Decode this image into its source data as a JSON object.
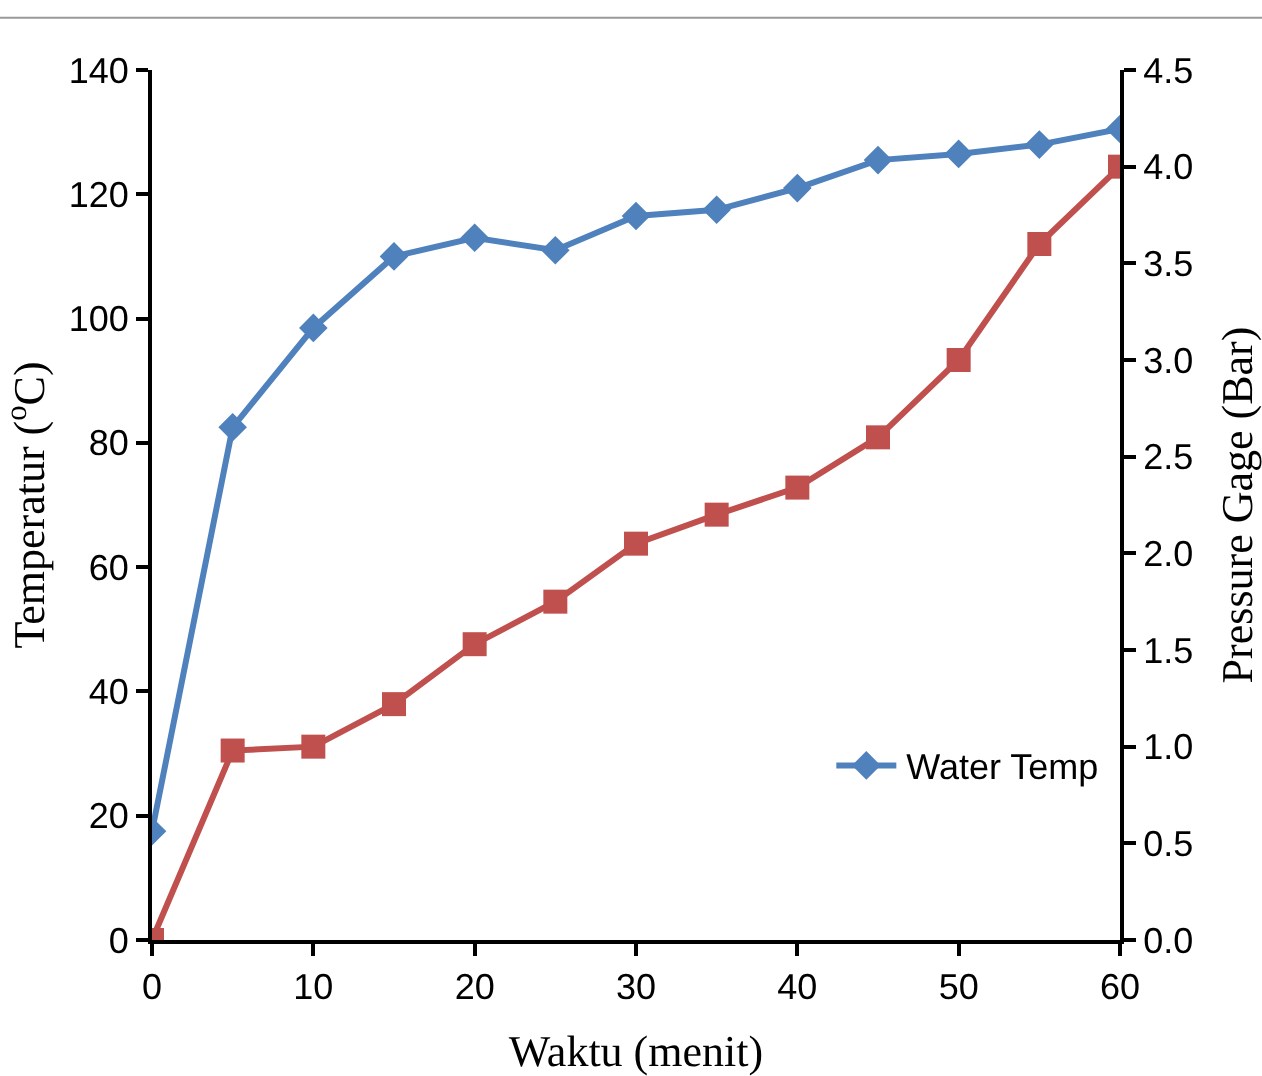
{
  "chart_data": {
    "type": "line",
    "xlabel": "Waktu (menit)",
    "ylabel": "Temperatur ($^{o}$C)",
    "y2label": "Pressure Gage (Bar)",
    "x": [
      0,
      5,
      10,
      15,
      20,
      25,
      30,
      35,
      40,
      45,
      50,
      55,
      60
    ],
    "series": [
      {
        "name": "Water Temp",
        "color": "#4f81bd",
        "marker": "diamond",
        "values": [
          17.5,
          82.5,
          98.5,
          110,
          113,
          111,
          116.5,
          117.5,
          121,
          125.5,
          126.5,
          128,
          130.5
        ]
      },
      {
        "color": "#c0504d",
        "marker": "square",
        "axis": "y2",
        "values": [
          0,
          0.98,
          1.0,
          1.22,
          1.53,
          1.75,
          2.05,
          2.2,
          2.34,
          2.6,
          3.0,
          3.6,
          4.0
        ]
      }
    ],
    "xlim": [
      0,
      60
    ],
    "xticks": [
      0,
      10,
      20,
      30,
      40,
      50,
      60
    ],
    "ylim": [
      0,
      140
    ],
    "yticks": [
      0,
      20,
      40,
      60,
      80,
      100,
      120,
      140
    ],
    "y2lim": [
      0,
      4.5
    ],
    "y2ticks": [
      {
        "value": 0,
        "label": "0.0"
      },
      {
        "value": 0.5,
        "label": "0.5"
      },
      {
        "value": 1,
        "label": "1.0"
      },
      {
        "value": 1.5,
        "label": "1.5"
      },
      {
        "value": 2,
        "label": "2.0"
      },
      {
        "value": 2.5,
        "label": "2.5"
      },
      {
        "value": 3,
        "label": "3.0"
      },
      {
        "value": 3.5,
        "label": "3.5"
      },
      {
        "value": 4,
        "label": "4.0"
      },
      {
        "value": 4.5,
        "label": "4.5"
      }
    ],
    "grid": false,
    "legend": "bottom right",
    "line_style": "solid"
  }
}
